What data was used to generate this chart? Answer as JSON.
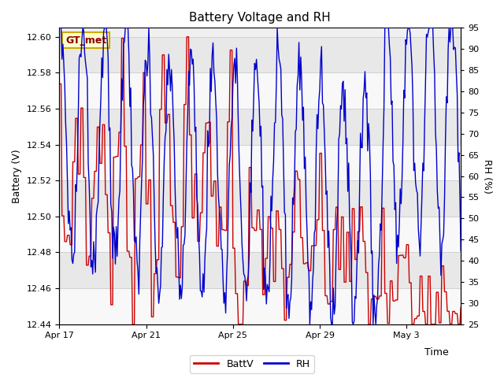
{
  "title": "Battery Voltage and RH",
  "xlabel": "Time",
  "ylabel_left": "Battery (V)",
  "ylabel_right": "RH (%)",
  "left_ylim": [
    12.44,
    12.605
  ],
  "right_ylim": [
    25,
    95
  ],
  "left_yticks": [
    12.44,
    12.46,
    12.48,
    12.5,
    12.52,
    12.54,
    12.56,
    12.58,
    12.6
  ],
  "right_yticks": [
    25,
    30,
    35,
    40,
    45,
    50,
    55,
    60,
    65,
    70,
    75,
    80,
    85,
    90,
    95
  ],
  "xtick_labels": [
    "Apr 17",
    "Apr 21",
    "Apr 25",
    "Apr 29",
    "May 3"
  ],
  "fig_bg_color": "#ffffff",
  "plot_bg_color": "#f0f0f0",
  "band_light": "#f8f8f8",
  "band_dark": "#e8e8e8",
  "batt_color": "#cc0000",
  "rh_color": "#0000cc",
  "legend_batt": "BattV",
  "legend_rh": "RH",
  "station_label": "GT_met",
  "station_box_bg": "#ffffcc",
  "station_box_edge": "#ccaa00",
  "grid_color": "#d0d0d0",
  "title_fontsize": 11,
  "axis_label_fontsize": 9,
  "tick_fontsize": 8
}
